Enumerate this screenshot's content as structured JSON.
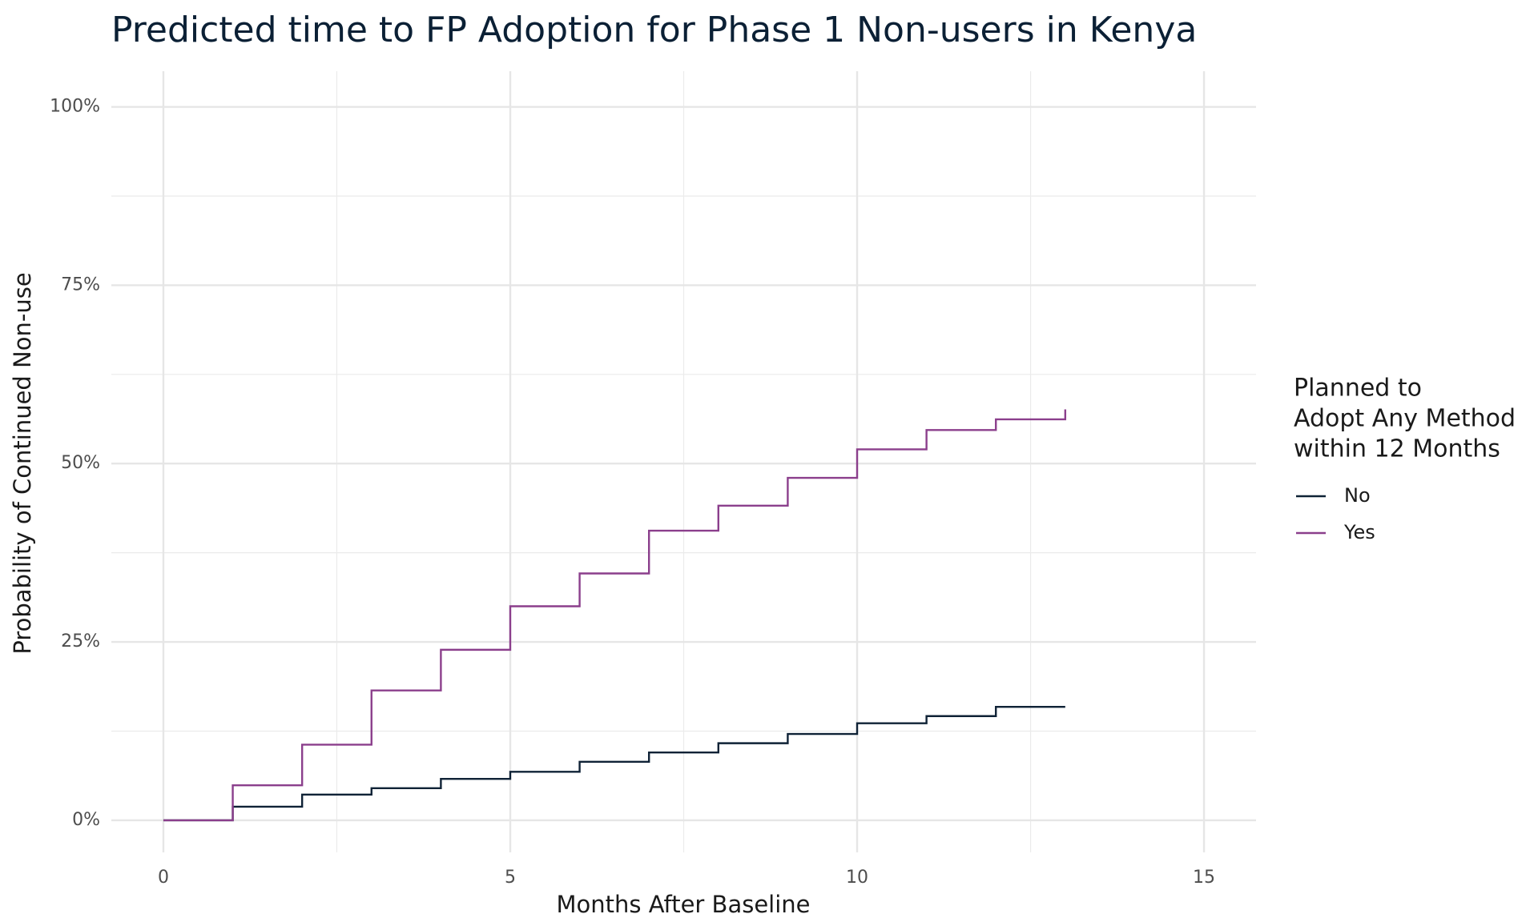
{
  "chart_data": {
    "type": "step",
    "title": "Predicted time to FP Adoption for Phase 1 Non-users in Kenya",
    "x_label": "Months After Baseline",
    "y_label": "Probability of Continued Non-use",
    "legend_title": [
      "Planned to",
      "Adopt Any Method",
      "within 12 Months"
    ],
    "legend_position": "right",
    "grid": true,
    "x": [
      0,
      1,
      2,
      3,
      4,
      5,
      6,
      7,
      8,
      9,
      10,
      11,
      12,
      13
    ],
    "series": [
      {
        "name": "No",
        "color": "#0f2236",
        "values": [
          0,
          1.9,
          3.6,
          4.5,
          5.8,
          6.8,
          8.2,
          9.5,
          10.8,
          12.1,
          13.6,
          14.6,
          15.9,
          15.9
        ]
      },
      {
        "name": "Yes",
        "color": "#8b3f8c",
        "values": [
          0,
          4.9,
          10.6,
          18.2,
          23.9,
          30.0,
          34.6,
          40.6,
          44.1,
          48.0,
          52.0,
          54.7,
          56.2,
          57.6
        ]
      }
    ],
    "xlim": [
      -0.75,
      15.75
    ],
    "xticks": [
      0,
      5,
      10,
      15
    ],
    "ylim": [
      -4.5,
      105
    ],
    "yticks": [
      {
        "value": 0,
        "label": "0%"
      },
      {
        "value": 25,
        "label": "25%"
      },
      {
        "value": 50,
        "label": "50%"
      },
      {
        "value": 75,
        "label": "75%"
      },
      {
        "value": 100,
        "label": "100%"
      }
    ]
  }
}
